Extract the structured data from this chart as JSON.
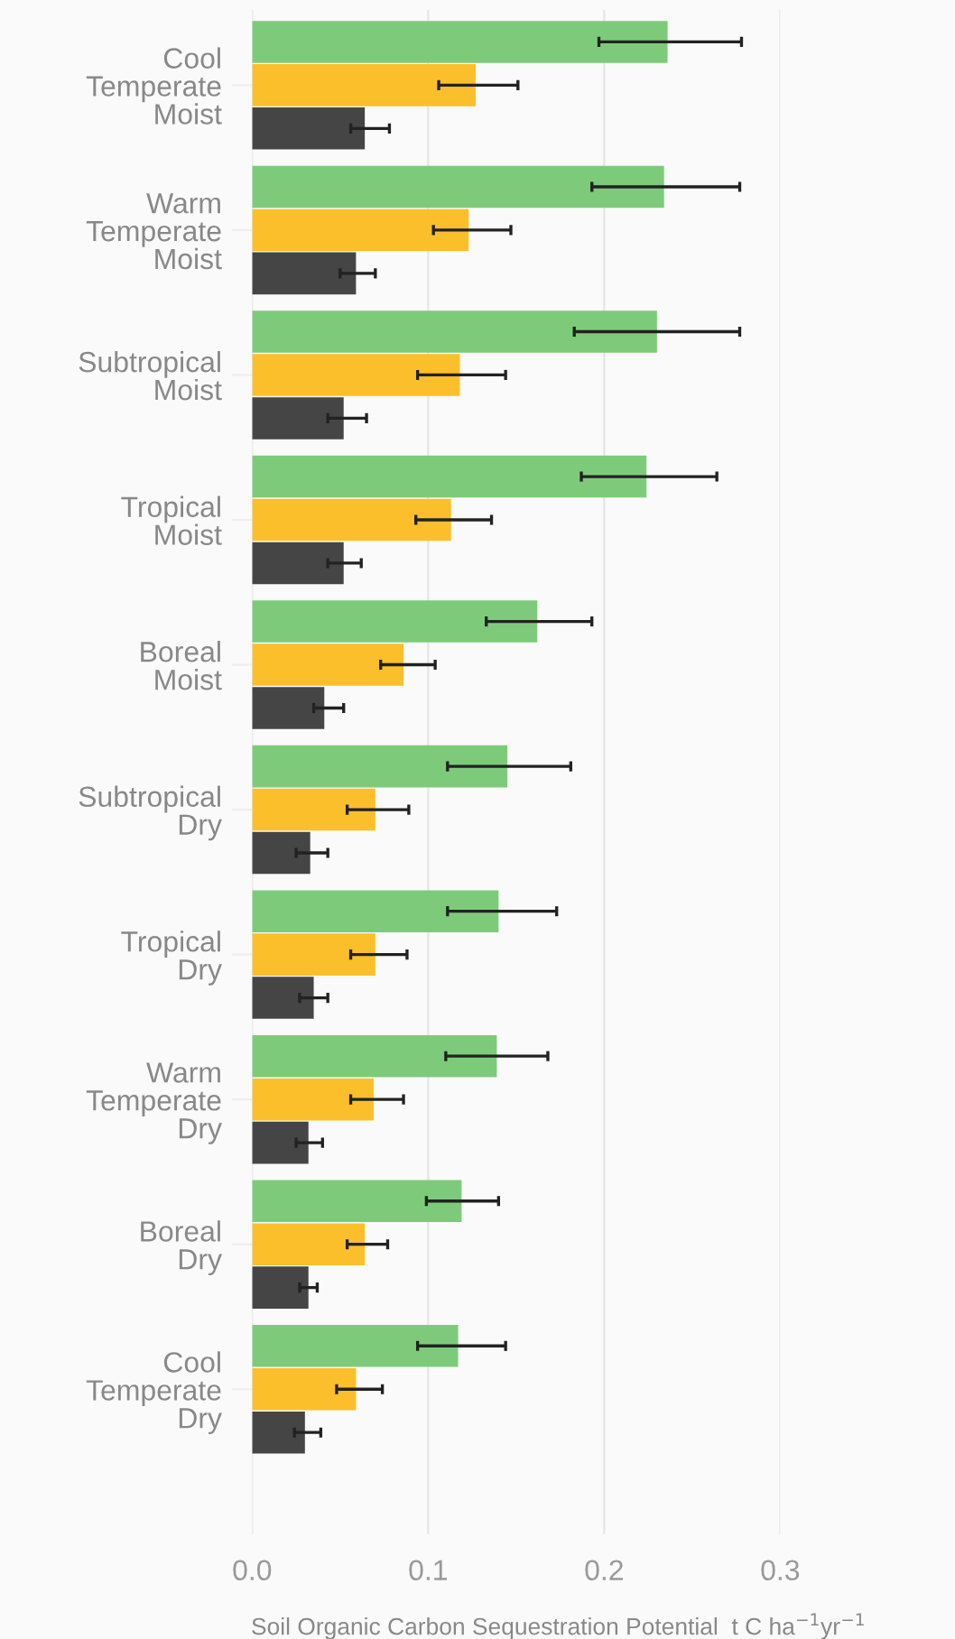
{
  "chart_data": {
    "type": "bar",
    "orientation": "horizontal",
    "categories": [
      "Cool\nTemperate\nMoist",
      "Warm\nTemperate\nMoist",
      "Subtropical\nMoist",
      "Tropical\nMoist",
      "Boreal\nMoist",
      "Subtropical\nDry",
      "Tropical\nDry",
      "Warm\nTemperate\nDry",
      "Boreal\nDry",
      "Cool\nTemperate\nDry"
    ],
    "series": [
      {
        "color": "#7dcb7a",
        "values": [
          0.236,
          0.234,
          0.23,
          0.224,
          0.162,
          0.145,
          0.14,
          0.139,
          0.119,
          0.117
        ],
        "errors": [
          [
            0.197,
            0.278
          ],
          [
            0.193,
            0.277
          ],
          [
            0.183,
            0.277
          ],
          [
            0.187,
            0.264
          ],
          [
            0.133,
            0.193
          ],
          [
            0.111,
            0.181
          ],
          [
            0.111,
            0.173
          ],
          [
            0.11,
            0.168
          ],
          [
            0.099,
            0.14
          ],
          [
            0.094,
            0.144
          ]
        ]
      },
      {
        "color": "#fbbf2b",
        "values": [
          0.127,
          0.123,
          0.118,
          0.113,
          0.086,
          0.07,
          0.07,
          0.069,
          0.064,
          0.059
        ],
        "errors": [
          [
            0.106,
            0.151
          ],
          [
            0.103,
            0.147
          ],
          [
            0.094,
            0.144
          ],
          [
            0.093,
            0.136
          ],
          [
            0.073,
            0.104
          ],
          [
            0.054,
            0.089
          ],
          [
            0.056,
            0.088
          ],
          [
            0.056,
            0.086
          ],
          [
            0.054,
            0.077
          ],
          [
            0.048,
            0.074
          ]
        ]
      },
      {
        "color": "#454545",
        "values": [
          0.064,
          0.059,
          0.052,
          0.052,
          0.041,
          0.033,
          0.035,
          0.032,
          0.032,
          0.03
        ],
        "errors": [
          [
            0.056,
            0.078
          ],
          [
            0.05,
            0.07
          ],
          [
            0.043,
            0.065
          ],
          [
            0.043,
            0.062
          ],
          [
            0.035,
            0.052
          ],
          [
            0.025,
            0.043
          ],
          [
            0.027,
            0.043
          ],
          [
            0.025,
            0.04
          ],
          [
            0.027,
            0.037
          ],
          [
            0.024,
            0.039
          ]
        ]
      }
    ],
    "xlabel": "Soil Organic Carbon Sequestration Potential  t C ha$^{−1}$yr$^{−1}$",
    "xlim": [
      0,
      0.3
    ],
    "xticks": [
      {
        "value": 0,
        "label": "0.0"
      },
      0.1,
      0.2,
      0.3
    ],
    "grid": "x",
    "legend": false
  }
}
